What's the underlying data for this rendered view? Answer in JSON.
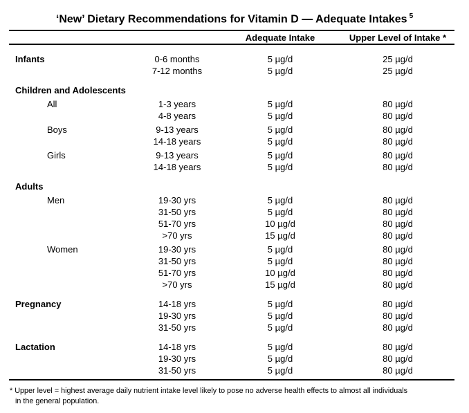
{
  "title": {
    "text": "‘New’ Dietary Recommendations for Vitamin D — Adequate Intakes",
    "superscript": "5"
  },
  "columns": {
    "adequate": "Adequate Intake",
    "upper": "Upper Level of Intake *"
  },
  "groups": [
    {
      "label": "Infants",
      "label_on_first_row": true,
      "subgroups": [
        {
          "label": "",
          "rows": [
            {
              "age": "0-6 months",
              "adequate": "5 µg/d",
              "upper": "25 µg/d"
            },
            {
              "age": "7-12 months",
              "adequate": "5 µg/d",
              "upper": "25 µg/d"
            }
          ]
        }
      ]
    },
    {
      "label": "Children and Adolescents",
      "label_on_first_row": false,
      "subgroups": [
        {
          "label": "All",
          "rows": [
            {
              "age": "1-3 years",
              "adequate": "5 µg/d",
              "upper": "80 µg/d"
            },
            {
              "age": "4-8 years",
              "adequate": "5 µg/d",
              "upper": "80 µg/d"
            }
          ]
        },
        {
          "label": "Boys",
          "rows": [
            {
              "age": "9-13 years",
              "adequate": "5 µg/d",
              "upper": "80 µg/d"
            },
            {
              "age": "14-18 years",
              "adequate": "5 µg/d",
              "upper": "80 µg/d"
            }
          ]
        },
        {
          "label": "Girls",
          "rows": [
            {
              "age": "9-13 years",
              "adequate": "5 µg/d",
              "upper": "80 µg/d"
            },
            {
              "age": "14-18 years",
              "adequate": "5 µg/d",
              "upper": "80 µg/d"
            }
          ]
        }
      ]
    },
    {
      "label": "Adults",
      "label_on_first_row": false,
      "subgroups": [
        {
          "label": "Men",
          "rows": [
            {
              "age": "19-30 yrs",
              "adequate": "5 µg/d",
              "upper": "80 µg/d"
            },
            {
              "age": "31-50 yrs",
              "adequate": "5 µg/d",
              "upper": "80 µg/d"
            },
            {
              "age": "51-70 yrs",
              "adequate": "10 µg/d",
              "upper": "80 µg/d"
            },
            {
              "age": ">70 yrs",
              "adequate": "15 µg/d",
              "upper": "80 µg/d"
            }
          ]
        },
        {
          "label": "Women",
          "rows": [
            {
              "age": "19-30 yrs",
              "adequate": "5 µg/d",
              "upper": "80 µg/d"
            },
            {
              "age": "31-50 yrs",
              "adequate": "5 µg/d",
              "upper": "80 µg/d"
            },
            {
              "age": "51-70 yrs",
              "adequate": "10 µg/d",
              "upper": "80 µg/d"
            },
            {
              "age": ">70 yrs",
              "adequate": "15 µg/d",
              "upper": "80 µg/d"
            }
          ]
        }
      ]
    },
    {
      "label": "Pregnancy",
      "label_on_first_row": true,
      "subgroups": [
        {
          "label": "",
          "rows": [
            {
              "age": "14-18 yrs",
              "adequate": "5 µg/d",
              "upper": "80 µg/d"
            },
            {
              "age": "19-30 yrs",
              "adequate": "5 µg/d",
              "upper": "80 µg/d"
            },
            {
              "age": "31-50 yrs",
              "adequate": "5 µg/d",
              "upper": "80 µg/d"
            }
          ]
        }
      ]
    },
    {
      "label": "Lactation",
      "label_on_first_row": true,
      "subgroups": [
        {
          "label": "",
          "rows": [
            {
              "age": "14-18 yrs",
              "adequate": "5 µg/d",
              "upper": "80 µg/d"
            },
            {
              "age": "19-30 yrs",
              "adequate": "5 µg/d",
              "upper": "80 µg/d"
            },
            {
              "age": "31-50 yrs",
              "adequate": "5 µg/d",
              "upper": "80 µg/d"
            }
          ]
        }
      ]
    }
  ],
  "footnote": {
    "line1": "* Upper level = highest average daily nutrient intake level likely to pose no adverse health effects to almost all individuals",
    "line2": "in the general population."
  },
  "colors": {
    "background": "#ffffff",
    "text": "#000000",
    "rule": "#000000"
  }
}
